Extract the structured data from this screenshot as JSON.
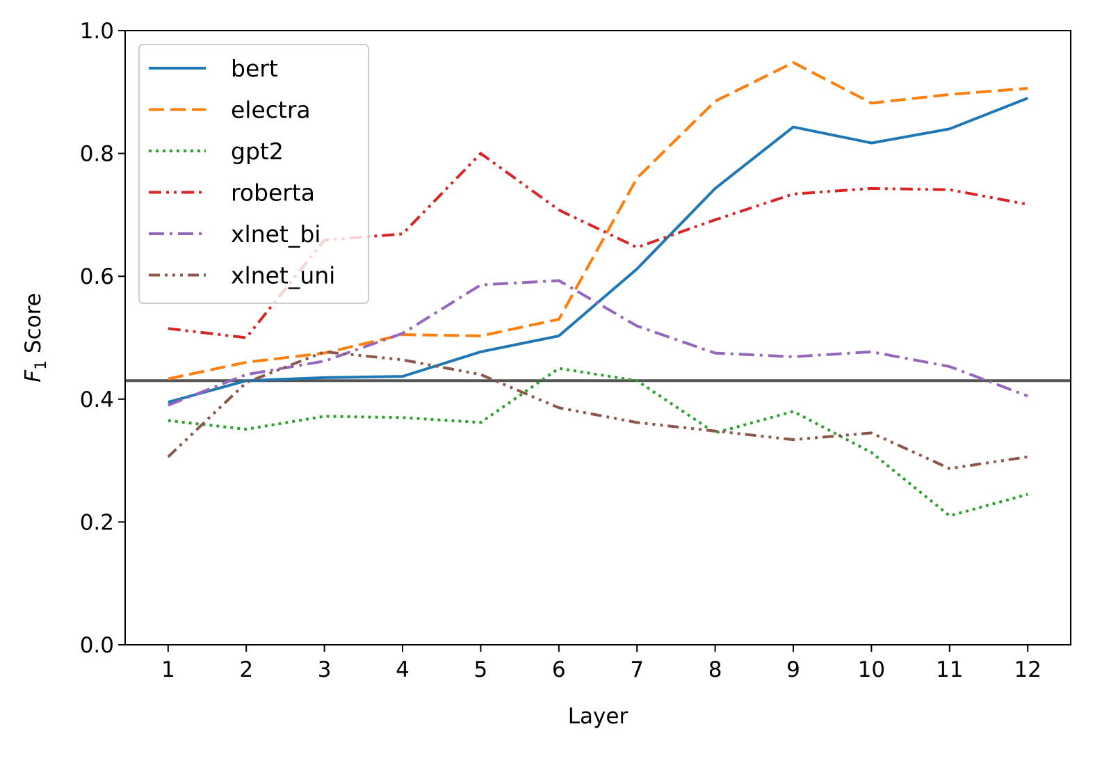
{
  "chart_data": {
    "type": "line",
    "x": [
      1,
      2,
      3,
      4,
      5,
      6,
      7,
      8,
      9,
      10,
      11,
      12
    ],
    "xticks": [
      "1",
      "2",
      "3",
      "4",
      "5",
      "6",
      "7",
      "8",
      "9",
      "10",
      "11",
      "12"
    ],
    "yticks": [
      "0.0",
      "0.2",
      "0.4",
      "0.6",
      "0.8",
      "1.0"
    ],
    "ylim": [
      0,
      1
    ],
    "xlabel": "Layer",
    "ylabel": {
      "main": "F",
      "sub": "1",
      "rest": " Score"
    },
    "legend_position": "upper-left",
    "reference_line": {
      "y": 0.43,
      "color": "#555555"
    },
    "series": [
      {
        "name": "bert",
        "color": "#1f77b4",
        "style": "solid",
        "values": [
          0.395,
          0.43,
          0.435,
          0.437,
          0.477,
          0.503,
          0.612,
          0.743,
          0.843,
          0.817,
          0.84,
          0.89
        ]
      },
      {
        "name": "electra",
        "color": "#ff7f0e",
        "style": "dashed",
        "values": [
          0.433,
          0.46,
          0.475,
          0.505,
          0.503,
          0.53,
          0.76,
          0.885,
          0.948,
          0.882,
          0.896,
          0.906
        ]
      },
      {
        "name": "gpt2",
        "color": "#2ca02c",
        "style": "dotted",
        "values": [
          0.365,
          0.351,
          0.372,
          0.37,
          0.362,
          0.45,
          0.43,
          0.345,
          0.38,
          0.313,
          0.21,
          0.245
        ]
      },
      {
        "name": "roberta",
        "color": "#d62728",
        "style": "dashdotdot",
        "values": [
          0.515,
          0.5,
          0.659,
          0.669,
          0.8,
          0.708,
          0.647,
          0.692,
          0.734,
          0.743,
          0.741,
          0.717
        ]
      },
      {
        "name": "xlnet_bi",
        "color": "#9467bd",
        "style": "dashdot",
        "values": [
          0.39,
          0.44,
          0.462,
          0.507,
          0.586,
          0.593,
          0.519,
          0.475,
          0.469,
          0.477,
          0.453,
          0.405
        ]
      },
      {
        "name": "xlnet_uni",
        "color": "#8c564b",
        "style": "dashdotdotdot",
        "values": [
          0.306,
          0.427,
          0.477,
          0.464,
          0.44,
          0.386,
          0.362,
          0.348,
          0.334,
          0.345,
          0.287,
          0.306
        ]
      }
    ]
  }
}
